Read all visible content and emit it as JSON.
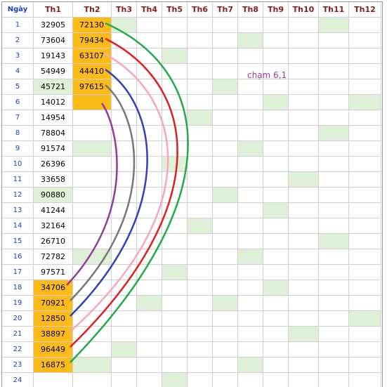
{
  "table": {
    "header": [
      "Ngày",
      "Th1",
      "Th2",
      "Th3",
      "Th4",
      "Th5",
      "Th6",
      "Th7",
      "Th8",
      "Th9",
      "Th10",
      "Th11",
      "Th12"
    ],
    "rows": [
      [
        1,
        32905,
        72130
      ],
      [
        2,
        73604,
        79434
      ],
      [
        3,
        19143,
        63107
      ],
      [
        4,
        54949,
        44410
      ],
      [
        5,
        45721,
        97615
      ],
      [
        6,
        14012
      ],
      [
        7,
        14954
      ],
      [
        8,
        78804
      ],
      [
        9,
        91574
      ],
      [
        10,
        26396
      ],
      [
        11,
        33658
      ],
      [
        12,
        90880
      ],
      [
        13,
        41244
      ],
      [
        14,
        32164
      ],
      [
        15,
        26710
      ],
      [
        16,
        72782
      ],
      [
        17,
        97571
      ],
      [
        18,
        34706
      ],
      [
        19,
        70921
      ],
      [
        20,
        12850
      ],
      [
        21,
        38897
      ],
      [
        22,
        96449
      ],
      [
        23,
        16875
      ],
      [
        24
      ]
    ]
  },
  "annotation": "chạm 6,1"
}
